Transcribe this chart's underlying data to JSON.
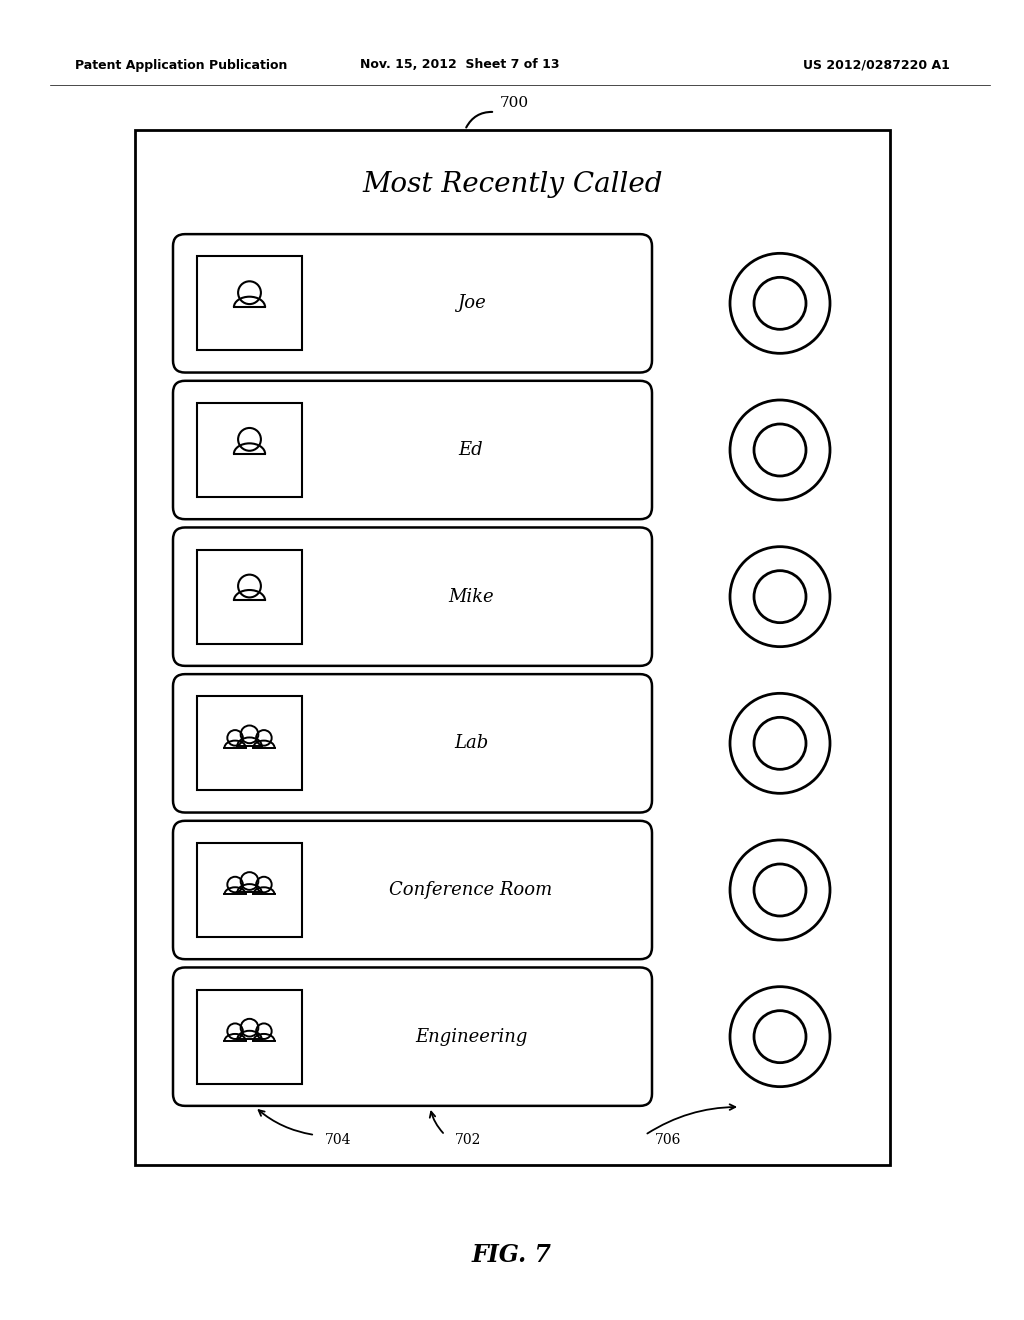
{
  "bg_color": "#ffffff",
  "header_left": "Patent Application Publication",
  "header_mid": "Nov. 15, 2012  Sheet 7 of 13",
  "header_right": "US 2012/0287220 A1",
  "fig_label": "FIG. 7",
  "fig_number": "700",
  "title": "Most Recently Called",
  "entries": [
    {
      "name": "Joe",
      "group": false
    },
    {
      "name": "Ed",
      "group": false
    },
    {
      "name": "Mike",
      "group": false
    },
    {
      "name": "Lab",
      "group": true
    },
    {
      "name": "Conference Room",
      "group": true
    },
    {
      "name": "Engineering",
      "group": true
    }
  ],
  "label_704": "704",
  "label_702": "702",
  "label_706": "706"
}
